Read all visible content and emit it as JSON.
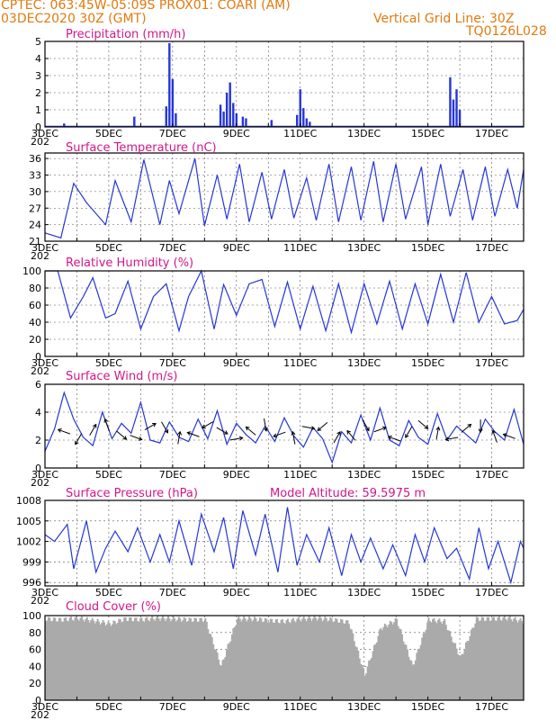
{
  "header": {
    "line1": "CPTEC:   063:45W-05:09S   PROX01: COARI (AM)",
    "line2": "03DEC2020 30Z (GMT)",
    "grid_note": "Vertical Grid Line: 30Z",
    "code": "TQ0126L028"
  },
  "colors": {
    "header": "#e07a10",
    "title": "#d0178a",
    "line": "#2536d8",
    "cloud": "#aaaaaa"
  },
  "x_ticks": [
    "3DEC",
    "5DEC",
    "7DEC",
    "9DEC",
    "11DEC",
    "13DEC",
    "15DEC",
    "17DEC"
  ],
  "year_stub": "202",
  "extra_title": "Model Altitude: 59.5975 m",
  "chart_data": [
    {
      "type": "bar",
      "title": "Precipitation (mm/h)",
      "ylim": [
        0,
        5
      ],
      "yticks": [
        "0",
        "1",
        "2",
        "3",
        "4",
        "5"
      ],
      "x": [
        3.6,
        5.8,
        6.8,
        6.9,
        7.0,
        7.1,
        8.5,
        8.6,
        8.7,
        8.8,
        8.9,
        9.0,
        9.2,
        9.3,
        10.1,
        10.9,
        11.0,
        11.1,
        11.2,
        11.3,
        15.7,
        15.8,
        15.9,
        16.0
      ],
      "values": [
        0.2,
        0.6,
        1.2,
        4.9,
        2.8,
        0.8,
        1.3,
        0.9,
        2.0,
        2.6,
        1.4,
        0.8,
        0.6,
        0.5,
        0.4,
        0.7,
        2.2,
        1.1,
        0.5,
        0.3,
        2.9,
        1.6,
        2.2,
        1.0
      ]
    },
    {
      "type": "line",
      "title": "Surface Temperature (nC)",
      "ylim": [
        21,
        37
      ],
      "yticks": [
        "21",
        "24",
        "27",
        "30",
        "33",
        "36"
      ],
      "x": [
        3.0,
        3.5,
        3.9,
        4.3,
        4.9,
        5.2,
        5.7,
        6.1,
        6.6,
        6.9,
        7.2,
        7.7,
        8.0,
        8.4,
        8.7,
        9.1,
        9.4,
        9.8,
        10.1,
        10.5,
        10.8,
        11.2,
        11.5,
        11.9,
        12.2,
        12.6,
        12.9,
        13.3,
        13.6,
        14.0,
        14.3,
        14.8,
        15.0,
        15.4,
        15.7,
        16.1,
        16.4,
        16.8,
        17.1,
        17.5,
        17.8,
        18.0
      ],
      "values": [
        22.5,
        21.6,
        31.5,
        28.0,
        24.0,
        32.0,
        24.5,
        35.8,
        24.0,
        32.0,
        26.0,
        36.0,
        23.8,
        33.0,
        25.0,
        35.0,
        24.5,
        33.5,
        25.0,
        34.0,
        25.2,
        32.5,
        24.8,
        35.0,
        24.5,
        34.5,
        24.8,
        35.5,
        24.5,
        35.0,
        25.0,
        34.5,
        24.0,
        35.0,
        25.5,
        34.0,
        24.8,
        34.5,
        25.5,
        34.0,
        27.0,
        34.0
      ]
    },
    {
      "type": "line",
      "title": "Relative Humidity (%)",
      "ylim": [
        0,
        100
      ],
      "yticks": [
        "0",
        "20",
        "40",
        "60",
        "80",
        "100"
      ],
      "x": [
        3.0,
        3.4,
        3.8,
        4.2,
        4.5,
        4.9,
        5.2,
        5.6,
        6.0,
        6.4,
        6.8,
        7.2,
        7.5,
        7.9,
        8.3,
        8.6,
        9.0,
        9.4,
        9.8,
        10.2,
        10.6,
        11.0,
        11.4,
        11.8,
        12.2,
        12.6,
        13.0,
        13.4,
        13.8,
        14.2,
        14.6,
        15.0,
        15.4,
        15.8,
        16.2,
        16.6,
        17.0,
        17.4,
        17.8,
        18.0
      ],
      "values": [
        100,
        100,
        45,
        70,
        92,
        45,
        50,
        88,
        32,
        70,
        85,
        30,
        70,
        100,
        32,
        84,
        48,
        85,
        90,
        35,
        87,
        32,
        82,
        30,
        85,
        28,
        85,
        38,
        88,
        32,
        85,
        38,
        96,
        40,
        98,
        40,
        70,
        38,
        42,
        55
      ]
    },
    {
      "type": "line",
      "title": "Surface Wind (m/s)",
      "ylim": [
        0,
        6
      ],
      "yticks": [
        "0",
        "2",
        "4",
        "6"
      ],
      "x": [
        3.0,
        3.3,
        3.6,
        3.9,
        4.2,
        4.5,
        4.8,
        5.1,
        5.4,
        5.7,
        6.0,
        6.3,
        6.6,
        6.9,
        7.2,
        7.5,
        7.8,
        8.1,
        8.4,
        8.7,
        9.0,
        9.3,
        9.6,
        9.9,
        10.2,
        10.5,
        10.8,
        11.1,
        11.4,
        11.7,
        12.0,
        12.3,
        12.6,
        12.9,
        13.2,
        13.5,
        13.8,
        14.1,
        14.4,
        14.7,
        15.0,
        15.3,
        15.6,
        15.9,
        16.2,
        16.5,
        16.8,
        17.1,
        17.4,
        17.7,
        18.0
      ],
      "values": [
        1.2,
        2.8,
        5.4,
        3.5,
        2.2,
        1.6,
        4.0,
        2.1,
        3.2,
        2.5,
        4.7,
        2.0,
        1.8,
        3.3,
        2.2,
        1.9,
        3.5,
        2.1,
        4.1,
        1.7,
        3.2,
        2.4,
        1.8,
        3.0,
        1.9,
        3.6,
        2.3,
        1.5,
        2.9,
        2.1,
        0.4,
        2.6,
        1.8,
        3.8,
        2.0,
        4.3,
        2.0,
        1.6,
        3.4,
        2.2,
        1.7,
        3.9,
        2.0,
        3.0,
        2.4,
        1.8,
        3.5,
        2.6,
        2.0,
        4.2,
        1.7
      ]
    },
    {
      "type": "line",
      "title": "Surface Pressure (hPa)",
      "ylim": [
        995.5,
        1008
      ],
      "yticks": [
        "996",
        "999",
        "1002",
        "1005",
        "1008"
      ],
      "x": [
        3.0,
        3.3,
        3.7,
        3.9,
        4.3,
        4.6,
        4.9,
        5.2,
        5.6,
        5.9,
        6.3,
        6.6,
        6.9,
        7.2,
        7.6,
        7.9,
        8.3,
        8.6,
        8.9,
        9.2,
        9.6,
        9.9,
        10.3,
        10.6,
        10.9,
        11.2,
        11.6,
        11.9,
        12.3,
        12.6,
        12.9,
        13.2,
        13.6,
        13.9,
        14.3,
        14.6,
        14.9,
        15.2,
        15.6,
        15.9,
        16.3,
        16.6,
        16.9,
        17.2,
        17.6,
        17.9,
        18.0
      ],
      "values": [
        1003,
        1002,
        1004.5,
        998,
        1005,
        997.5,
        1001,
        1003.5,
        1000.5,
        1004,
        999,
        1003,
        999,
        1005,
        998.5,
        1006,
        1000.5,
        1005.5,
        998,
        1006.5,
        1000,
        1006,
        997.5,
        1007,
        998.5,
        1003,
        999,
        1004,
        997,
        1003,
        999,
        1002.5,
        998,
        1001.5,
        997,
        1003,
        999,
        1004,
        999.5,
        1001,
        996.5,
        1004,
        998,
        1002,
        996,
        1002,
        1001
      ]
    },
    {
      "type": "bar",
      "title": "Cloud Cover (%)",
      "ylim": [
        0,
        100
      ],
      "yticks": [
        "0",
        "20",
        "40",
        "60",
        "80",
        "100"
      ],
      "x": [
        3.0,
        3.5,
        4.0,
        4.5,
        5.0,
        5.5,
        6.0,
        6.5,
        7.0,
        7.5,
        8.0,
        8.5,
        9.0,
        9.5,
        10.0,
        10.5,
        11.0,
        11.5,
        12.0,
        12.5,
        13.0,
        13.5,
        14.0,
        14.5,
        15.0,
        15.5,
        16.0,
        16.5,
        17.0,
        17.5,
        18.0
      ],
      "values": [
        96,
        95,
        97,
        94,
        90,
        96,
        95,
        97,
        96,
        95,
        95,
        40,
        96,
        96,
        94,
        93,
        96,
        97,
        95,
        92,
        30,
        85,
        95,
        40,
        95,
        93,
        50,
        96,
        96,
        97,
        93
      ]
    }
  ]
}
